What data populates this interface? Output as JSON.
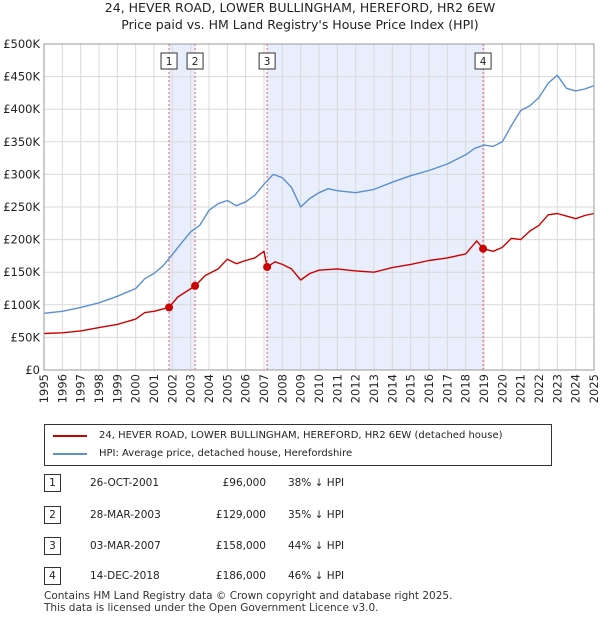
{
  "title_line1": "24, HEVER ROAD, LOWER BULLINGHAM, HEREFORD, HR2 6EW",
  "title_line2": "Price paid vs. HM Land Registry's House Price Index (HPI)",
  "chart_data": {
    "type": "line",
    "title": "24, HEVER ROAD, LOWER BULLINGHAM, HEREFORD, HR2 6EW — Price paid vs. HM Land Registry's House Price Index (HPI)",
    "xlabel": "",
    "ylabel": "",
    "xlim": [
      1995,
      2025
    ],
    "ylim": [
      0,
      500000
    ],
    "y_ticks": [
      0,
      50000,
      100000,
      150000,
      200000,
      250000,
      300000,
      350000,
      400000,
      450000,
      500000
    ],
    "y_tick_labels": [
      "£0",
      "£50K",
      "£100K",
      "£150K",
      "£200K",
      "£250K",
      "£300K",
      "£350K",
      "£400K",
      "£450K",
      "£500K"
    ],
    "x_ticks": [
      1995,
      1996,
      1997,
      1998,
      1999,
      2000,
      2001,
      2002,
      2003,
      2004,
      2005,
      2006,
      2007,
      2008,
      2009,
      2010,
      2011,
      2012,
      2013,
      2014,
      2015,
      2016,
      2017,
      2018,
      2019,
      2020,
      2021,
      2022,
      2023,
      2024,
      2025
    ],
    "x_tick_labels": [
      "1995",
      "1996",
      "1997",
      "1998",
      "1999",
      "2000",
      "2001",
      "2002",
      "2003",
      "2004",
      "2005",
      "2006",
      "2007",
      "2008",
      "2009",
      "2010",
      "2011",
      "2012",
      "2013",
      "2014",
      "2015",
      "2016",
      "2017",
      "2018",
      "2019",
      "2020",
      "2021",
      "2022",
      "2023",
      "2024",
      "2025"
    ],
    "grid": true,
    "shaded_ranges": [
      [
        2001.82,
        2003.24
      ],
      [
        2007.17,
        2018.95
      ]
    ],
    "colors": {
      "property": "#cc0000",
      "hpi": "#5a8fd0",
      "shade": "#e8eefb",
      "marker_line": "#e06070"
    },
    "series": [
      {
        "name": "24, HEVER ROAD, LOWER BULLINGHAM, HEREFORD, HR2 6EW (detached house)",
        "color": "#cc0000",
        "x": [
          1995,
          1996,
          1997,
          1998,
          1999,
          2000,
          2000.5,
          2001,
          2001.82,
          2002.3,
          2003.24,
          2003.8,
          2004.5,
          2005,
          2005.5,
          2006,
          2006.5,
          2007,
          2007.17,
          2007.6,
          2008,
          2008.5,
          2009,
          2009.5,
          2010,
          2011,
          2012,
          2013,
          2014,
          2015,
          2016,
          2017,
          2018,
          2018.6,
          2018.95,
          2019.5,
          2020,
          2020.5,
          2021,
          2021.5,
          2022,
          2022.5,
          2023,
          2023.5,
          2024,
          2024.5,
          2025
        ],
        "y": [
          56000,
          57000,
          60000,
          65000,
          70000,
          78000,
          88000,
          90000,
          96000,
          112000,
          129000,
          145000,
          155000,
          170000,
          163000,
          168000,
          172000,
          182000,
          158000,
          166000,
          162000,
          155000,
          138000,
          148000,
          153000,
          155000,
          152000,
          150000,
          157000,
          162000,
          168000,
          172000,
          178000,
          198000,
          186000,
          182000,
          188000,
          202000,
          200000,
          213000,
          222000,
          238000,
          240000,
          236000,
          232000,
          237000,
          240000
        ]
      },
      {
        "name": "HPI: Average price, detached house, Herefordshire",
        "color": "#5a8fd0",
        "x": [
          1995,
          1996,
          1997,
          1998,
          1999,
          2000,
          2000.5,
          2001,
          2001.5,
          2002,
          2002.5,
          2003,
          2003.5,
          2004,
          2004.5,
          2005,
          2005.5,
          2006,
          2006.5,
          2007,
          2007.5,
          2008,
          2008.5,
          2009,
          2009.5,
          2010,
          2010.5,
          2011,
          2012,
          2013,
          2014,
          2015,
          2016,
          2017,
          2018,
          2018.5,
          2019,
          2019.5,
          2020,
          2020.5,
          2021,
          2021.5,
          2022,
          2022.5,
          2023,
          2023.5,
          2024,
          2024.5,
          2025
        ],
        "y": [
          87000,
          90000,
          96000,
          103000,
          113000,
          125000,
          140000,
          148000,
          160000,
          177000,
          195000,
          212000,
          222000,
          245000,
          255000,
          260000,
          252000,
          258000,
          268000,
          285000,
          300000,
          295000,
          280000,
          250000,
          263000,
          272000,
          278000,
          275000,
          272000,
          277000,
          288000,
          298000,
          306000,
          316000,
          330000,
          340000,
          345000,
          343000,
          350000,
          375000,
          398000,
          405000,
          418000,
          440000,
          452000,
          432000,
          428000,
          431000,
          436000
        ]
      }
    ],
    "transactions": [
      {
        "id": "1",
        "x": 2001.82,
        "price": 96000
      },
      {
        "id": "2",
        "x": 2003.24,
        "price": 129000
      },
      {
        "id": "3",
        "x": 2007.17,
        "price": 158000
      },
      {
        "id": "4",
        "x": 2018.95,
        "price": 186000
      }
    ]
  },
  "legend": {
    "property_label": "24, HEVER ROAD, LOWER BULLINGHAM, HEREFORD, HR2 6EW (detached house)",
    "hpi_label": "HPI: Average price, detached house, Herefordshire"
  },
  "transactions_table": [
    {
      "num": "1",
      "date": "26-OCT-2001",
      "price": "£96,000",
      "hpi": "38% ↓ HPI"
    },
    {
      "num": "2",
      "date": "28-MAR-2003",
      "price": "£129,000",
      "hpi": "35% ↓ HPI"
    },
    {
      "num": "3",
      "date": "03-MAR-2007",
      "price": "£158,000",
      "hpi": "44% ↓ HPI"
    },
    {
      "num": "4",
      "date": "14-DEC-2018",
      "price": "£186,000",
      "hpi": "46% ↓ HPI"
    }
  ],
  "footer": {
    "line1": "Contains HM Land Registry data © Crown copyright and database right 2025.",
    "line2": "This data is licensed under the Open Government Licence v3.0."
  }
}
